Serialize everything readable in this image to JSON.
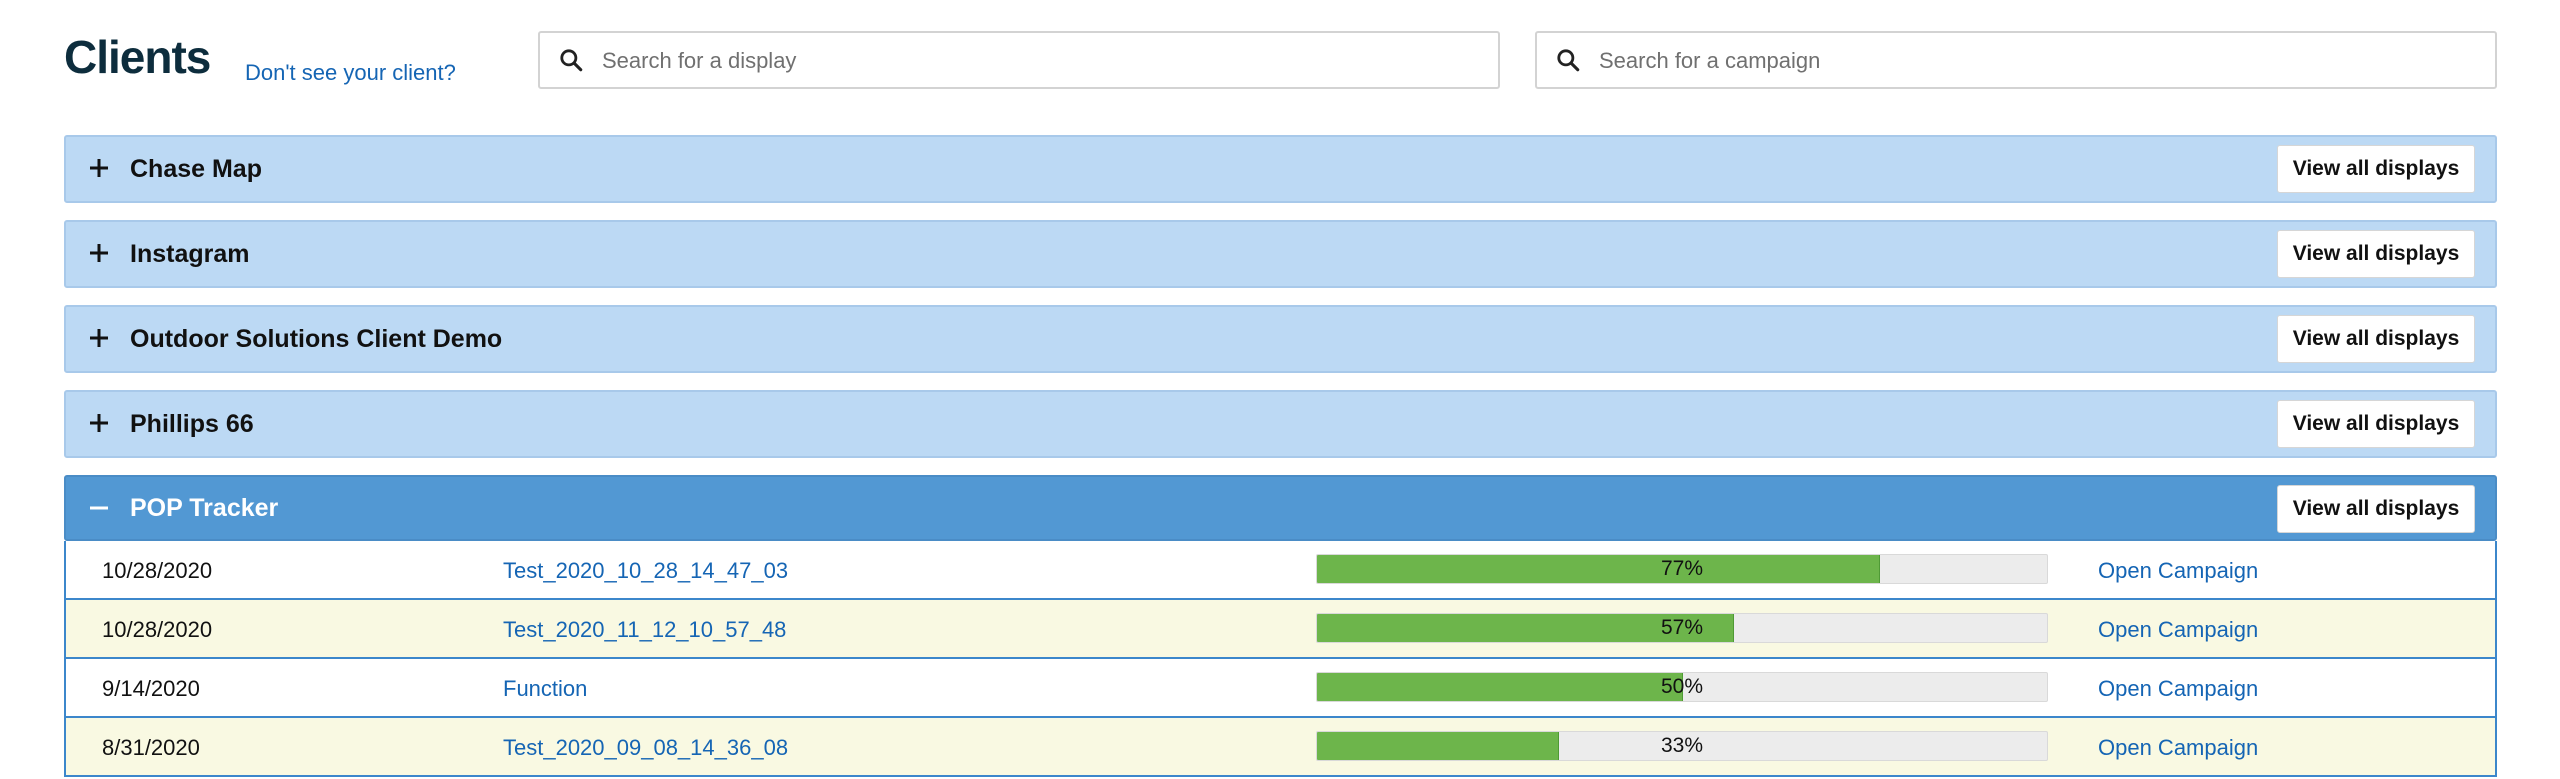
{
  "header": {
    "title": "Clients",
    "help_link": "Don't see your client?",
    "display_search_placeholder": "Search for a display",
    "campaign_search_placeholder": "Search for a campaign"
  },
  "clients": [
    {
      "name": "Chase Map",
      "expanded": false,
      "button": "View all displays"
    },
    {
      "name": "Instagram",
      "expanded": false,
      "button": "View all displays"
    },
    {
      "name": "Outdoor Solutions Client Demo",
      "expanded": false,
      "button": "View all displays"
    },
    {
      "name": "Phillips 66",
      "expanded": false,
      "button": "View all displays"
    },
    {
      "name": "POP Tracker",
      "expanded": true,
      "button": "View all displays"
    }
  ],
  "campaigns": [
    {
      "date": "10/28/2020",
      "name": "Test_2020_10_28_14_47_03",
      "progress_label": "77%",
      "progress": 0.77,
      "action": "Open Campaign"
    },
    {
      "date": "10/28/2020",
      "name": "Test_2020_11_12_10_57_48",
      "progress_label": "57%",
      "progress": 0.57,
      "action": "Open Campaign"
    },
    {
      "date": "9/14/2020",
      "name": "Function",
      "progress_label": "50%",
      "progress": 0.5,
      "action": "Open Campaign"
    },
    {
      "date": "8/31/2020",
      "name": "Test_2020_09_08_14_36_08",
      "progress_label": "33%",
      "progress": 0.33,
      "action": "Open Campaign"
    }
  ],
  "colors": {
    "collapsed_header": "#bcd9f4",
    "expanded_header": "#5298d3",
    "progress_fill": "#6db54b",
    "link": "#1565b4",
    "alt_row": "#f9f9e2"
  },
  "icons": {
    "search": "search-icon",
    "expand": "plus-icon",
    "collapse": "minus-icon"
  }
}
